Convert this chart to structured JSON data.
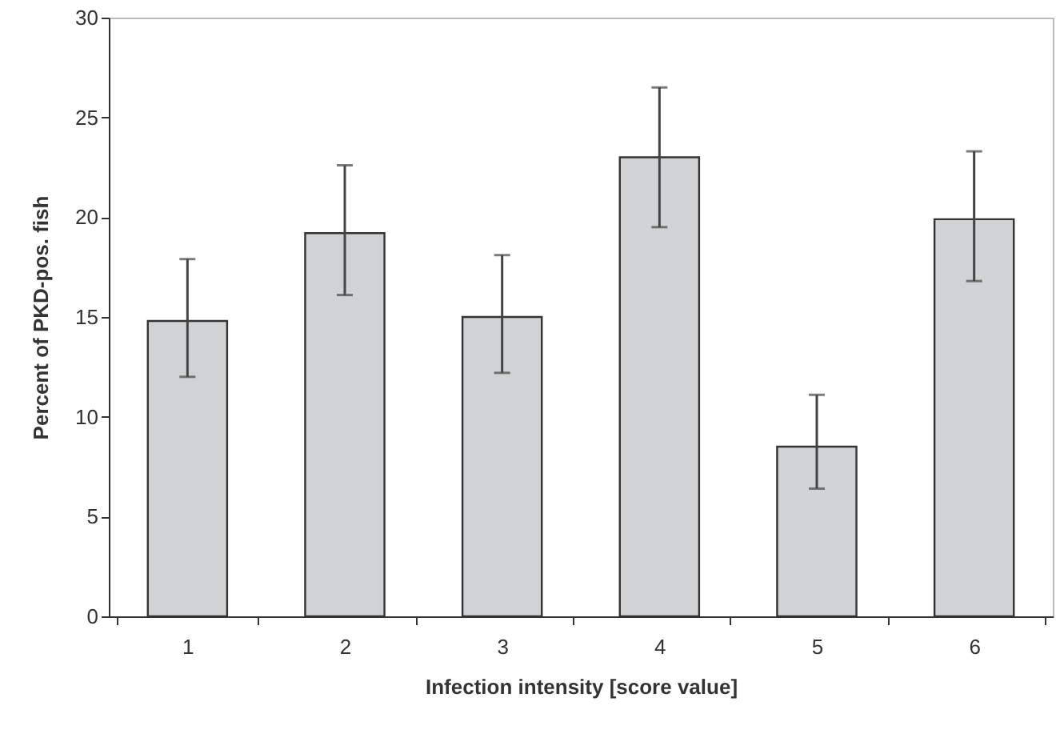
{
  "chart_data": {
    "type": "bar",
    "xlabel": "Infection intensity [score value]",
    "ylabel": "Percent of PKD-pos. fish",
    "categories": [
      "1",
      "2",
      "3",
      "4",
      "5",
      "6"
    ],
    "values": [
      14.8,
      19.2,
      15.0,
      23.0,
      8.5,
      19.9
    ],
    "errors": [
      [
        12.0,
        17.9
      ],
      [
        16.1,
        22.6
      ],
      [
        12.2,
        18.1
      ],
      [
        19.5,
        26.5
      ],
      [
        6.4,
        11.1
      ],
      [
        16.8,
        23.3
      ]
    ],
    "color": "#d0d2d3",
    "ylim": [
      0,
      30
    ],
    "yticks": [
      0,
      5,
      10,
      15,
      20,
      25,
      30
    ],
    "grid": false
  }
}
